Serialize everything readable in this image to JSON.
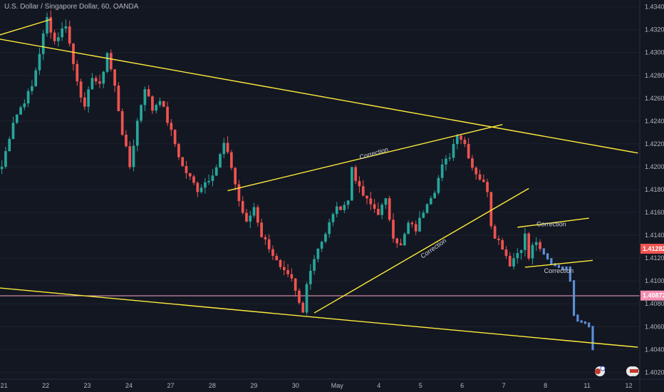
{
  "header": {
    "title": "U.S. Dollar / Singapore Dollar, 60, OANDA"
  },
  "colors": {
    "background": "#131722",
    "up": "#26a69a",
    "down": "#ef5350",
    "projection": "#5b8fd9",
    "trendline": "#ffeb3b",
    "support_line": "#f8a5c2",
    "current_price_tag": "#ef5350",
    "support_price_tag": "#f48fb1",
    "axis_text": "#b2b5be"
  },
  "chart_data": {
    "type": "candlestick",
    "x_labels": [
      "21",
      "22",
      "23",
      "24",
      "27",
      "28",
      "29",
      "30",
      "May",
      "4",
      "5",
      "6",
      "7",
      "8",
      "11",
      "12"
    ],
    "y_ticks": [
      1.402,
      1.404,
      1.406,
      1.408,
      1.41,
      1.412,
      1.414,
      1.416,
      1.418,
      1.42,
      1.422,
      1.424,
      1.426,
      1.428,
      1.43,
      1.432,
      1.434
    ],
    "ylim": [
      1.4014,
      1.4346
    ],
    "price_tags": {
      "current": "1.41282",
      "support": "1.40872"
    },
    "waypoints": [
      [
        0,
        1.42
      ],
      [
        3,
        1.424
      ],
      [
        8,
        1.427
      ],
      [
        10,
        1.43
      ],
      [
        12,
        1.433
      ],
      [
        14,
        1.431
      ],
      [
        17,
        1.4325
      ],
      [
        19,
        1.429
      ],
      [
        22,
        1.425
      ],
      [
        24,
        1.428
      ],
      [
        26,
        1.427
      ],
      [
        28,
        1.43
      ],
      [
        30,
        1.427
      ],
      [
        32,
        1.423
      ],
      [
        34,
        1.42
      ],
      [
        36,
        1.424
      ],
      [
        38,
        1.427
      ],
      [
        40,
        1.425
      ],
      [
        42,
        1.426
      ],
      [
        45,
        1.423
      ],
      [
        48,
        1.42
      ],
      [
        52,
        1.418
      ],
      [
        55,
        1.419
      ],
      [
        57,
        1.42
      ],
      [
        59,
        1.422
      ],
      [
        61,
        1.42
      ],
      [
        63,
        1.417
      ],
      [
        65,
        1.415
      ],
      [
        67,
        1.4165
      ],
      [
        69,
        1.414
      ],
      [
        71,
        1.413
      ],
      [
        74,
        1.411
      ],
      [
        77,
        1.41
      ],
      [
        79,
        1.408
      ],
      [
        80,
        1.4072
      ],
      [
        81,
        1.41
      ],
      [
        84,
        1.413
      ],
      [
        86,
        1.414
      ],
      [
        88,
        1.416
      ],
      [
        90,
        1.4165
      ],
      [
        92,
        1.417
      ],
      [
        93,
        1.42
      ],
      [
        95,
        1.418
      ],
      [
        97,
        1.417
      ],
      [
        100,
        1.416
      ],
      [
        102,
        1.417
      ],
      [
        104,
        1.414
      ],
      [
        106,
        1.413
      ],
      [
        108,
        1.415
      ],
      [
        110,
        1.4145
      ],
      [
        113,
        1.417
      ],
      [
        115,
        1.418
      ],
      [
        117,
        1.42
      ],
      [
        119,
        1.421
      ],
      [
        121,
        1.423
      ],
      [
        123,
        1.422
      ],
      [
        125,
        1.42
      ],
      [
        127,
        1.419
      ],
      [
        129,
        1.418
      ],
      [
        130,
        1.415
      ],
      [
        131,
        1.414
      ],
      [
        133,
        1.413
      ],
      [
        135,
        1.4115
      ],
      [
        137,
        1.4125
      ],
      [
        138,
        1.413
      ],
      [
        139,
        1.414
      ],
      [
        140,
        1.412
      ],
      [
        141,
        1.413
      ],
      [
        142,
        1.4135
      ],
      [
        143,
        1.4128
      ]
    ],
    "projection": [
      [
        143,
        1.4128
      ],
      [
        146,
        1.4115
      ],
      [
        148,
        1.4112
      ],
      [
        149,
        1.411
      ],
      [
        150,
        1.4112
      ],
      [
        151,
        1.41
      ],
      [
        152,
        1.407
      ],
      [
        153,
        1.4065
      ],
      [
        154,
        1.4064
      ],
      [
        155,
        1.4063
      ],
      [
        156,
        1.406
      ],
      [
        157,
        1.404
      ]
    ],
    "trendlines": [
      {
        "name": "upper-channel-line",
        "p1": [
          -1,
          1.4312
        ],
        "p2": [
          169,
          1.4212
        ]
      },
      {
        "name": "lower-channel-line",
        "p1": [
          -1,
          1.4094
        ],
        "p2": [
          169,
          1.4042
        ]
      },
      {
        "name": "top-touch-line",
        "p1": [
          -1,
          1.4315
        ],
        "p2": [
          13,
          1.4329
        ]
      },
      {
        "name": "correction-upper-line",
        "p1": [
          60,
          1.4179
        ],
        "p2": [
          133,
          1.4237
        ]
      },
      {
        "name": "correction-rising-line",
        "p1": [
          83,
          1.4072
        ],
        "p2": [
          140,
          1.4181
        ]
      },
      {
        "name": "flag-upper-line",
        "p1": [
          137,
          1.4147
        ],
        "p2": [
          156,
          1.4155
        ]
      },
      {
        "name": "flag-lower-line",
        "p1": [
          139,
          1.4112
        ],
        "p2": [
          157,
          1.4118
        ]
      }
    ],
    "support_level": 1.4087,
    "annotations": [
      {
        "text": "Correction",
        "x": 99,
        "y": 1.421,
        "angle": -16
      },
      {
        "text": "Correction",
        "x": 115,
        "y": 1.4127,
        "angle": -35
      },
      {
        "text": "Correction",
        "x": 146,
        "y": 1.4148,
        "angle": 0
      },
      {
        "text": "Correction",
        "x": 148,
        "y": 1.4107,
        "angle": 0
      }
    ]
  }
}
